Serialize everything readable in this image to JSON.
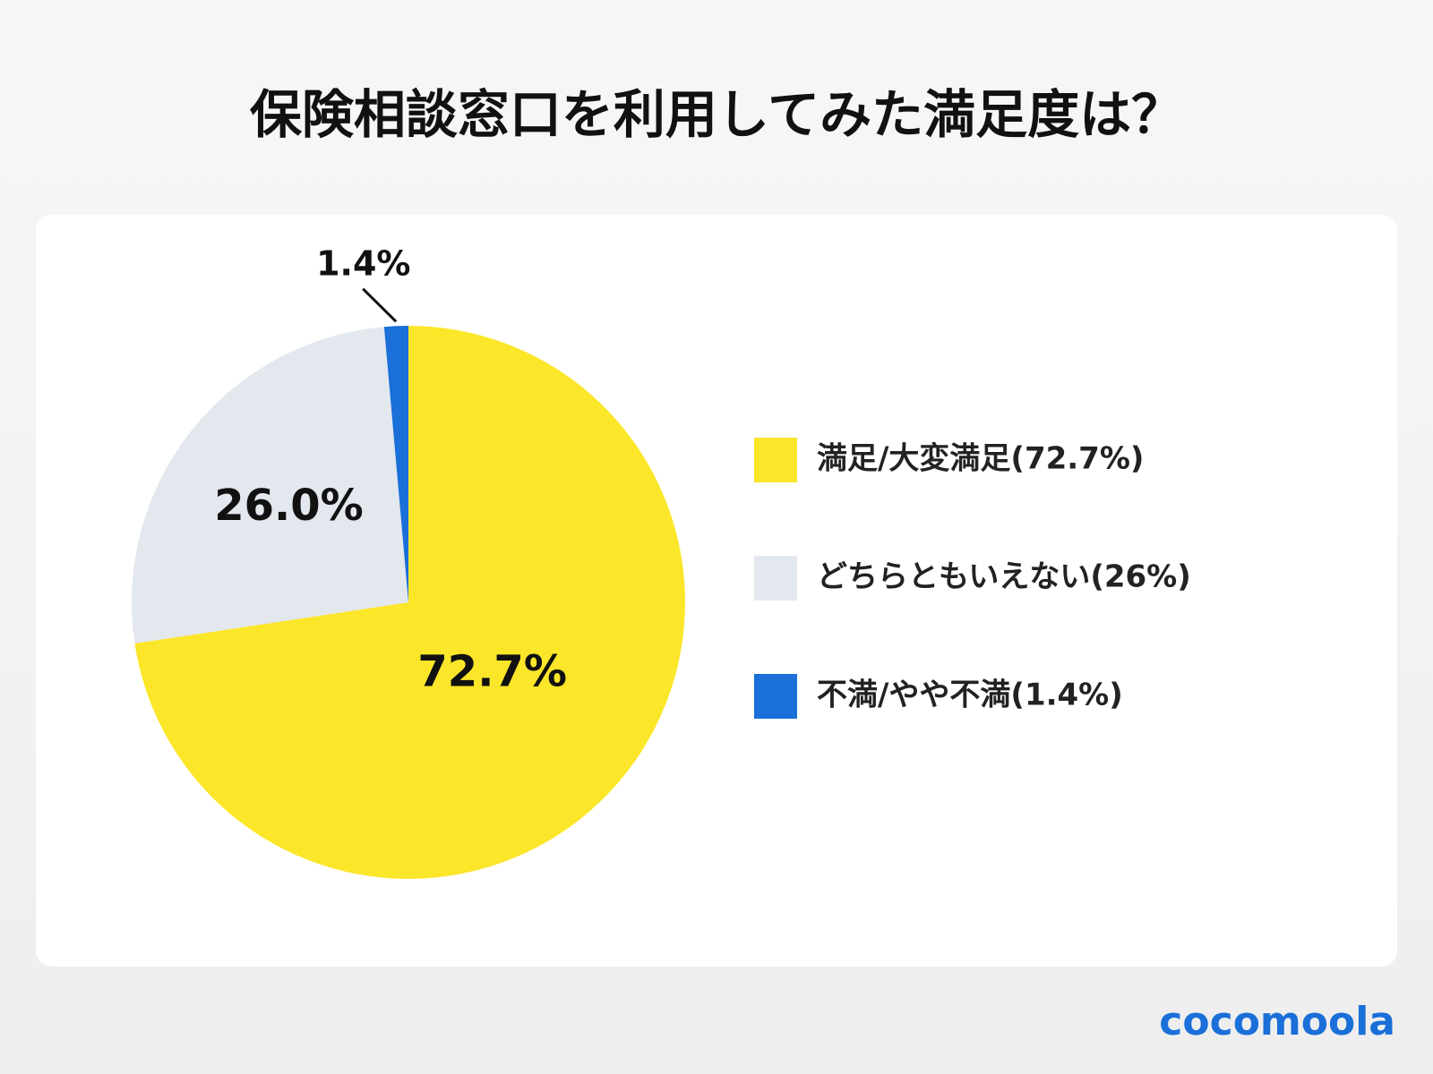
{
  "chart_data": {
    "type": "pie",
    "title": "保険相談窓口を利用してみた満足度は？",
    "categories": [
      "満足/大変満足(72.7%)",
      "どちらともいえない(26%)",
      "不満/やや不満(1.4%)"
    ],
    "values": [
      72.7,
      26.0,
      1.4
    ],
    "value_labels": [
      "72.7%",
      "26.0%",
      "1.4%"
    ],
    "colors": [
      "#fce62a",
      "#e3e7ee",
      "#1a6fd8"
    ],
    "legend": "right"
  },
  "logo": "cocomoola"
}
